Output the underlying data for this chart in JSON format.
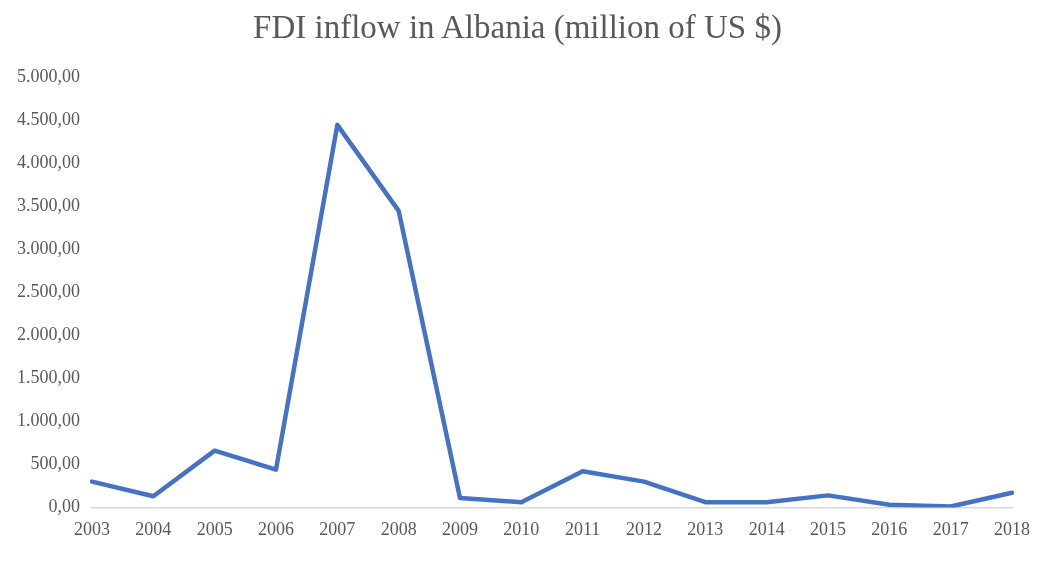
{
  "chart_data": {
    "type": "line",
    "title": "FDI inflow in Albania (million of US $)",
    "categories": [
      "2003",
      "2004",
      "2005",
      "2006",
      "2007",
      "2008",
      "2009",
      "2010",
      "2011",
      "2012",
      "2013",
      "2014",
      "2015",
      "2016",
      "2017",
      "2018"
    ],
    "series": [
      {
        "color": "#4472c4",
        "values": [
          300,
          130,
          660,
          440,
          4450,
          3450,
          110,
          60,
          420,
          300,
          60,
          60,
          140,
          30,
          10,
          170
        ]
      }
    ],
    "ylim": [
      0,
      5000
    ],
    "yticks": [
      {
        "value": 0,
        "label": "0,00"
      },
      {
        "value": 500,
        "label": "500,00"
      },
      {
        "value": 1000,
        "label": "1.000,00"
      },
      {
        "value": 1500,
        "label": "1.500,00"
      },
      {
        "value": 2000,
        "label": "2.000,00"
      },
      {
        "value": 2500,
        "label": "2.500,00"
      },
      {
        "value": 3000,
        "label": "3.000,00"
      },
      {
        "value": 3500,
        "label": "3.500,00"
      },
      {
        "value": 4000,
        "label": "4.000,00"
      },
      {
        "value": 4500,
        "label": "4.500,00"
      },
      {
        "value": 5000,
        "label": "5.000,00"
      }
    ],
    "grid": false,
    "legend": false,
    "marker": "none",
    "line_style": "solid"
  }
}
